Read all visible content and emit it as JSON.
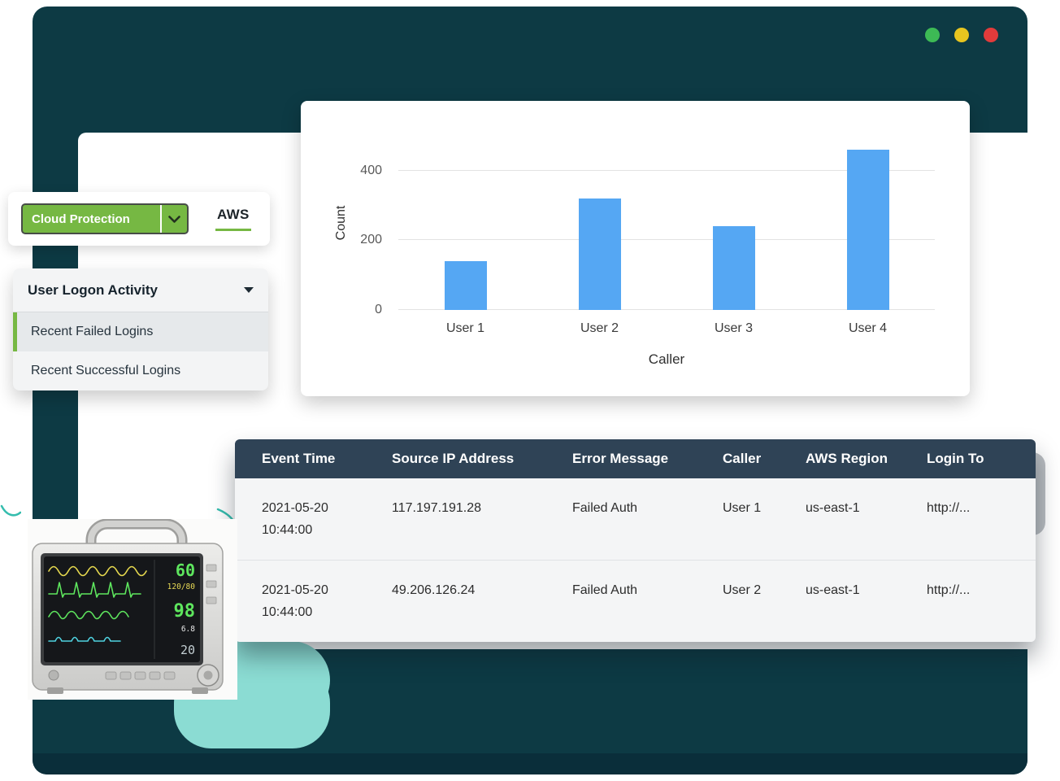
{
  "colors": {
    "window_bg": "#0d3a44",
    "window_footer": "#0a2e3a",
    "accent_green": "#76b843",
    "bar_blue": "#55a7f3",
    "table_header_bg": "#2f4356",
    "cloud_teal": "#8bdcd3",
    "traffic_green": "#3dba55",
    "traffic_yellow": "#e8c51f",
    "traffic_red": "#e23b3b"
  },
  "toolbar": {
    "dropdown_label": "Cloud Protection",
    "tab_label": "AWS"
  },
  "menu": {
    "header": "User Logon Activity",
    "items": [
      {
        "label": "Recent Failed Logins",
        "active": true
      },
      {
        "label": "Recent Successful Logins",
        "active": false
      }
    ]
  },
  "chart_data": {
    "type": "bar",
    "categories": [
      "User 1",
      "User 2",
      "User 3",
      "User 4"
    ],
    "values": [
      140,
      320,
      240,
      460
    ],
    "title": "",
    "xlabel": "Caller",
    "ylabel": "Count",
    "ylim": [
      0,
      500
    ],
    "yticks": [
      0,
      200,
      400
    ],
    "grid": "horizontal",
    "legend": "none",
    "bar_color": "#55a7f3"
  },
  "table": {
    "columns": [
      "Event Time",
      "Source IP Address",
      "Error Message",
      "Caller",
      "AWS Region",
      "Login To"
    ],
    "rows": [
      {
        "date": "2021-05-20",
        "time": "10:44:00",
        "source_ip": "117.197.191.28",
        "error_message": "Failed Auth",
        "caller": "User 1",
        "aws_region": "us-east-1",
        "login_to": "http://..."
      },
      {
        "date": "2021-05-20",
        "time": "10:44:00",
        "source_ip": "49.206.126.24",
        "error_message": "Failed Auth",
        "caller": "User 2",
        "aws_region": "us-east-1",
        "login_to": "http://..."
      }
    ]
  },
  "monitor": {
    "hr": "60",
    "nibp": "120/80",
    "spo2": "98",
    "temp": "6.8",
    "resp": "20"
  }
}
